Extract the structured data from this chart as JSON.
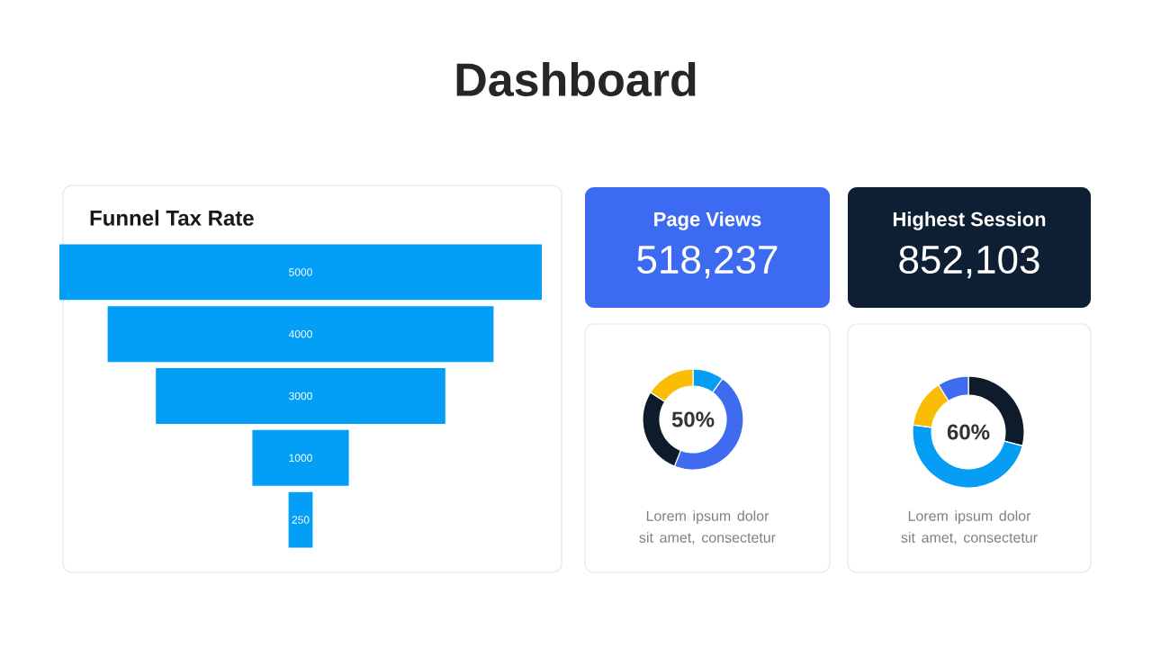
{
  "chart_data": [
    {
      "type": "other",
      "title": "Funnel Tax Rate",
      "annotations": [
        "Dashboard"
      ],
      "categories": [
        null,
        null,
        null,
        null,
        null
      ],
      "values": [
        5000,
        4000,
        3000,
        1000,
        250
      ],
      "color": "#039ef5",
      "data_labels": true
    },
    {
      "type": "other",
      "title": "Page Views",
      "values": [
        518237
      ],
      "value_labels": [
        "518,237"
      ],
      "color": "#3d6af2"
    },
    {
      "type": "other",
      "title": "Highest Session",
      "values": [
        852103
      ],
      "value_labels": [
        "852,103"
      ],
      "color": "#0f1f33"
    },
    {
      "type": "donut",
      "categories": [
        null,
        null,
        null,
        null
      ],
      "values": [
        10,
        46,
        28,
        16
      ],
      "colors": [
        "#069ef5",
        "#3f6bf0",
        "#0d1b2a",
        "#fbbc05"
      ],
      "annotations": [
        "50%",
        "Lorem ipsum dolor sit amet, consectetur"
      ]
    },
    {
      "type": "donut",
      "categories": [
        null,
        null,
        null,
        null
      ],
      "values": [
        29,
        48,
        14,
        9
      ],
      "colors": [
        "#0d1b2a",
        "#069ef5",
        "#fbbc05",
        "#3f6bf0"
      ],
      "annotations": [
        "60%",
        "Lorem ipsum dolor sit amet, consectetur"
      ]
    }
  ]
}
